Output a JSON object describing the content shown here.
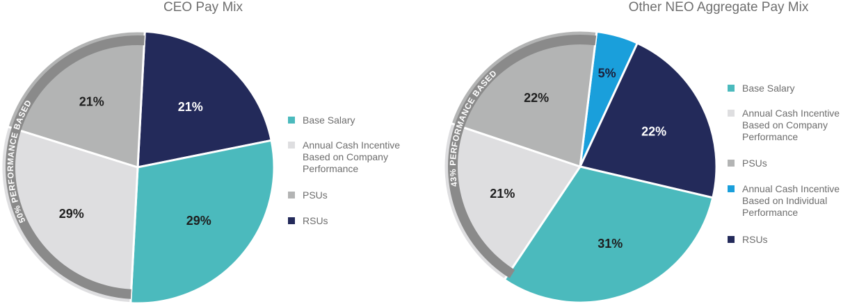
{
  "chart_data": [
    {
      "type": "pie",
      "title": "CEO Pay Mix",
      "slices": [
        {
          "label": "RSUs",
          "value": 21,
          "display": "21%",
          "color": "#232a5a"
        },
        {
          "label": "Base Salary",
          "value": 29,
          "display": "29%",
          "color": "#4bbabd"
        },
        {
          "label": "Annual Cash Incentive Based on Company Performance",
          "value": 29,
          "display": "29%",
          "color": "#dedee0"
        },
        {
          "label": "PSUs",
          "value": 21,
          "display": "21%",
          "color": "#b3b4b4"
        }
      ],
      "performance_band": {
        "label": "50% PERFORMANCE BASED",
        "value": 50,
        "color": "#8a8a8a"
      },
      "legend": [
        {
          "label": "Base Salary",
          "color": "#4bbabd"
        },
        {
          "label": "Annual Cash Incentive\nBased on Company\nPerformance",
          "color": "#dedee0"
        },
        {
          "label": "PSUs",
          "color": "#b3b4b4"
        },
        {
          "label": "RSUs",
          "color": "#232a5a"
        }
      ],
      "legend_position": "right"
    },
    {
      "type": "pie",
      "title": "Other NEO Aggregate Pay Mix",
      "slices": [
        {
          "label": "Annual Cash Incentive Based on Individual Performance",
          "value": 5,
          "display": "5%",
          "color": "#1a9fdb"
        },
        {
          "label": "RSUs",
          "value": 22,
          "display": "22%",
          "color": "#232a5a"
        },
        {
          "label": "Base Salary",
          "value": 31,
          "display": "31%",
          "color": "#4bbabd"
        },
        {
          "label": "Annual Cash Incentive Based on Company Performance",
          "value": 21,
          "display": "21%",
          "color": "#dedee0"
        },
        {
          "label": "PSUs",
          "value": 22,
          "display": "22%",
          "color": "#b3b4b4"
        }
      ],
      "performance_band": {
        "label": "43% PERFORMANCE BASED",
        "value": 43,
        "color": "#8a8a8a"
      },
      "legend": [
        {
          "label": "Base Salary",
          "color": "#4bbabd"
        },
        {
          "label": "Annual Cash Incentive\nBased on Company\nPerformance",
          "color": "#dedee0"
        },
        {
          "label": "PSUs",
          "color": "#b3b4b4"
        },
        {
          "label": "Annual Cash Incentive\nBased on Individual\nPerformance",
          "color": "#1a9fdb"
        },
        {
          "label": "RSUs",
          "color": "#232a5a"
        }
      ],
      "legend_position": "right"
    }
  ]
}
